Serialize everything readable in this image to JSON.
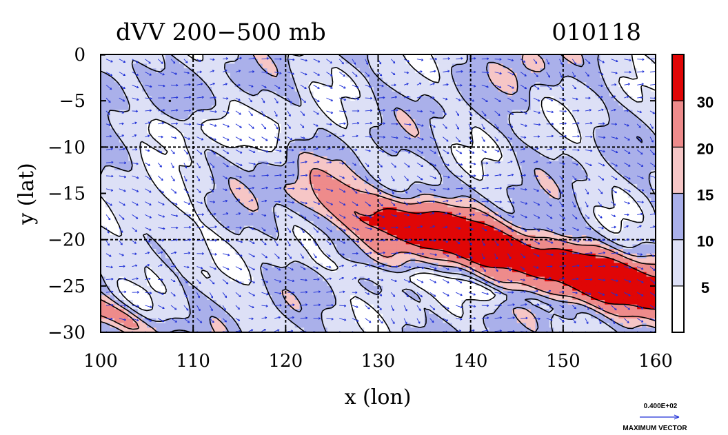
{
  "chart_data": {
    "type": "heatmap",
    "title": "dVV 200−500 mb",
    "date_label": "010118",
    "xlabel": "x (lon)",
    "ylabel": "y (lat)",
    "xlim": [
      100,
      160
    ],
    "ylim": [
      -30,
      0
    ],
    "x_ticks": [
      100,
      110,
      120,
      130,
      140,
      150,
      160
    ],
    "x_tick_labels": [
      "100",
      "110",
      "120",
      "130",
      "140",
      "150",
      "160"
    ],
    "y_ticks": [
      0,
      -5,
      -10,
      -15,
      -20,
      -25,
      -30
    ],
    "y_tick_labels": [
      "0",
      "−5",
      "−10",
      "−15",
      "−20",
      "−25",
      "−30"
    ],
    "grid_lon": [
      110,
      120,
      130,
      140,
      150
    ],
    "grid_lat": [
      -10,
      -20
    ],
    "colorbar": {
      "levels": [
        0,
        5,
        10,
        15,
        20,
        30,
        40
      ],
      "tick_values": [
        5,
        10,
        15,
        20,
        30
      ],
      "tick_labels": [
        "5",
        "10",
        "15",
        "20",
        "30"
      ],
      "colors": [
        "#ffffff",
        "#dde0f6",
        "#aab0ea",
        "#f6c6c6",
        "#ee8b8b",
        "#e00606"
      ]
    },
    "max_vector_value": "0.400E+02",
    "max_vector_caption": "MAXIMUM VECTOR",
    "vector_color": "#1e2fd6",
    "contour_color": "#000000"
  }
}
